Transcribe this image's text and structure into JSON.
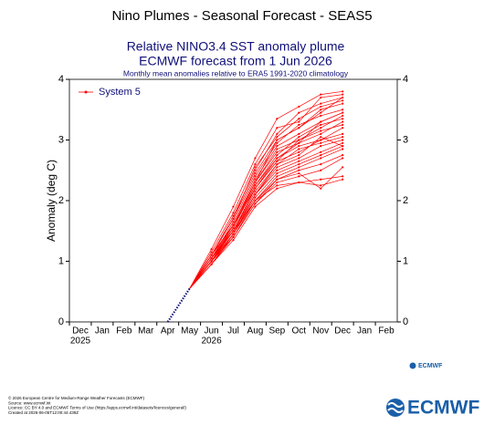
{
  "header": {
    "title": "Nino Plumes - Seasonal Forecast - SEAS5"
  },
  "chart_data": {
    "type": "plume",
    "title": "Relative NINO3.4 SST anomaly plume",
    "subtitle": "ECMWF forecast from 1 Jun 2026",
    "note": "Monthly mean anomalies relative to ERA5 1991-2020 climatology",
    "y_label": "Anomaly (deg C)",
    "categories": [
      "Dec",
      "Jan",
      "Feb",
      "Mar",
      "Apr",
      "May",
      "Jun",
      "Jul",
      "Aug",
      "Sep",
      "Oct",
      "Nov",
      "Dec",
      "Jan",
      "Feb"
    ],
    "x_years": [
      "2025",
      null,
      null,
      null,
      null,
      null,
      "2026",
      null,
      null,
      null,
      null,
      null,
      null,
      null,
      null
    ],
    "ylim": [
      0,
      4
    ],
    "yticks": [
      0,
      1,
      2,
      3,
      4
    ],
    "legend": "upper left",
    "observed": {
      "color": "#10107a",
      "values": [
        null,
        null,
        null,
        null,
        0,
        0.55,
        null,
        null,
        null,
        null,
        null,
        null,
        null,
        null,
        null
      ]
    },
    "series": [
      {
        "name": "System 5",
        "color": "#ff0000",
        "members": [
          [
            null,
            null,
            null,
            null,
            null,
            0.55,
            1.2,
            1.9,
            2.7,
            3.35,
            3.55,
            3.75,
            3.8,
            null,
            null
          ],
          [
            null,
            null,
            null,
            null,
            null,
            0.55,
            1.15,
            1.8,
            2.6,
            3.2,
            3.3,
            3.7,
            3.75,
            null,
            null
          ],
          [
            null,
            null,
            null,
            null,
            null,
            0.55,
            1.1,
            1.75,
            2.5,
            3.1,
            3.45,
            3.6,
            3.7,
            null,
            null
          ],
          [
            null,
            null,
            null,
            null,
            null,
            0.55,
            1.1,
            1.7,
            2.45,
            3.0,
            3.2,
            3.5,
            3.6,
            null,
            null
          ],
          [
            null,
            null,
            null,
            null,
            null,
            0.55,
            1.05,
            1.65,
            2.4,
            2.95,
            3.25,
            3.4,
            3.5,
            null,
            null
          ],
          [
            null,
            null,
            null,
            null,
            null,
            0.55,
            1.1,
            1.6,
            2.35,
            2.9,
            3.1,
            3.3,
            3.45,
            null,
            null
          ],
          [
            null,
            null,
            null,
            null,
            null,
            0.55,
            1.0,
            1.6,
            2.3,
            2.85,
            3.0,
            3.2,
            3.4,
            null,
            null
          ],
          [
            null,
            null,
            null,
            null,
            null,
            0.55,
            1.05,
            1.55,
            2.3,
            2.8,
            2.95,
            3.1,
            3.3,
            null,
            null
          ],
          [
            null,
            null,
            null,
            null,
            null,
            0.55,
            1.0,
            1.55,
            2.25,
            2.75,
            3.05,
            3.25,
            3.35,
            null,
            null
          ],
          [
            null,
            null,
            null,
            null,
            null,
            0.55,
            1.1,
            1.6,
            2.2,
            2.7,
            2.9,
            3.0,
            3.2,
            null,
            null
          ],
          [
            null,
            null,
            null,
            null,
            null,
            0.55,
            1.0,
            1.5,
            2.2,
            2.65,
            2.8,
            3.0,
            3.1,
            null,
            null
          ],
          [
            null,
            null,
            null,
            null,
            null,
            0.55,
            1.05,
            1.5,
            2.15,
            2.6,
            2.85,
            2.95,
            3.05,
            null,
            null
          ],
          [
            null,
            null,
            null,
            null,
            null,
            0.55,
            0.95,
            1.45,
            2.1,
            2.55,
            2.7,
            2.9,
            3.0,
            null,
            null
          ],
          [
            null,
            null,
            null,
            null,
            null,
            0.55,
            1.0,
            1.5,
            2.1,
            2.5,
            2.65,
            2.8,
            2.95,
            null,
            null
          ],
          [
            null,
            null,
            null,
            null,
            null,
            0.55,
            1.0,
            1.45,
            2.05,
            2.45,
            2.6,
            2.75,
            2.9,
            null,
            null
          ],
          [
            null,
            null,
            null,
            null,
            null,
            0.55,
            0.95,
            1.4,
            2.0,
            2.4,
            2.55,
            2.7,
            2.85,
            null,
            null
          ],
          [
            null,
            null,
            null,
            null,
            null,
            0.55,
            1.0,
            1.45,
            2.0,
            2.35,
            2.5,
            2.6,
            2.75,
            null,
            null
          ],
          [
            null,
            null,
            null,
            null,
            null,
            0.55,
            0.95,
            1.4,
            1.95,
            2.3,
            2.4,
            2.5,
            2.7,
            null,
            null
          ],
          [
            null,
            null,
            null,
            null,
            null,
            0.55,
            1.0,
            1.5,
            2.0,
            2.25,
            2.3,
            2.35,
            2.4,
            null,
            null
          ],
          [
            null,
            null,
            null,
            null,
            null,
            0.55,
            0.95,
            1.35,
            1.9,
            2.2,
            2.3,
            2.25,
            2.35,
            null,
            null
          ],
          [
            null,
            null,
            null,
            null,
            null,
            0.55,
            1.0,
            1.4,
            1.95,
            2.35,
            2.45,
            2.2,
            2.55,
            null,
            null
          ],
          [
            null,
            null,
            null,
            null,
            null,
            0.55,
            1.05,
            1.6,
            2.3,
            3.0,
            3.2,
            3.45,
            3.7,
            null,
            null
          ],
          [
            null,
            null,
            null,
            null,
            null,
            0.55,
            1.1,
            1.7,
            2.55,
            3.05,
            3.35,
            3.55,
            3.65,
            null,
            null
          ],
          [
            null,
            null,
            null,
            null,
            null,
            0.55,
            1.0,
            1.55,
            2.25,
            2.7,
            2.95,
            3.3,
            3.45,
            null,
            null
          ],
          [
            null,
            null,
            null,
            null,
            null,
            0.55,
            1.05,
            1.5,
            2.2,
            2.65,
            3.0,
            3.15,
            3.25,
            null,
            null
          ],
          [
            null,
            null,
            null,
            null,
            null,
            0.55,
            0.95,
            1.45,
            2.1,
            2.6,
            2.75,
            3.05,
            2.9,
            null,
            null
          ]
        ]
      }
    ]
  },
  "small_logo": "ECMWF",
  "footer": {
    "lines": [
      "© 2026 European Centre for Medium-Range Weather Forecasts (ECMWF)",
      "Source: www.ecmwf.int",
      "Licence: CC BY 4.0 and ECMWF Terms of Use (https://apps.ecmwf.int/datasets/licences/general/)",
      "Created at 2026-06-05T12:00:44.439Z"
    ],
    "logo": "ECMWF"
  }
}
